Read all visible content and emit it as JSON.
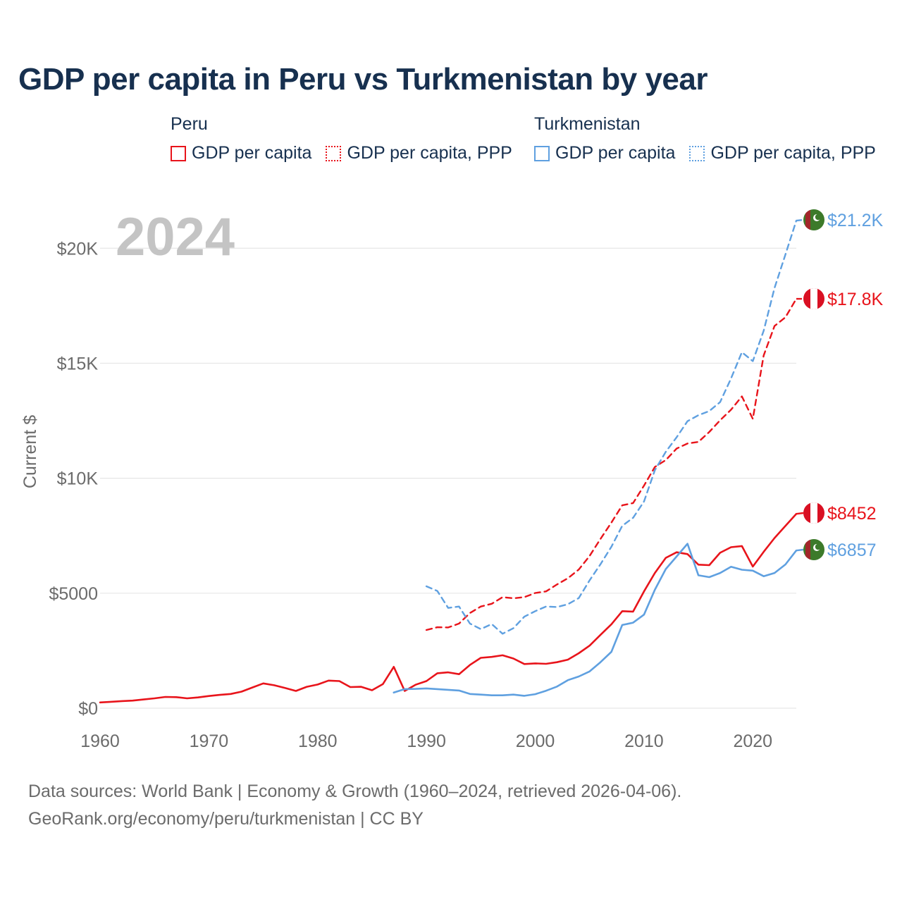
{
  "title": "GDP per capita in Peru vs Turkmenistan by year",
  "legend": {
    "peru": {
      "country": "Peru",
      "items": [
        {
          "label": "GDP per capita",
          "style": "solid"
        },
        {
          "label": "GDP per capita, PPP",
          "style": "dotted"
        }
      ]
    },
    "turkmenistan": {
      "country": "Turkmenistan",
      "items": [
        {
          "label": "GDP per capita",
          "style": "solid"
        },
        {
          "label": "GDP per capita, PPP",
          "style": "dotted"
        }
      ]
    }
  },
  "footer": {
    "line1": "Data sources: World Bank | Economy & Growth (1960–2024, retrieved 2026-04-06).",
    "line2": "GeoRank.org/economy/peru/turkmenistan | CC BY"
  },
  "colors": {
    "peru": "#e8141b",
    "turkmenistan": "#5fa0e0",
    "title": "#17304f",
    "axis_text": "#6b6b6b",
    "grid": "#e6e6e6",
    "year_watermark": "#c4c4c4"
  },
  "chart_data": {
    "type": "line",
    "year_label": "2024",
    "ylabel": "Current $",
    "xlim": [
      1960,
      2024
    ],
    "ylim": [
      0,
      22000
    ],
    "x_ticks": [
      1960,
      1970,
      1980,
      1990,
      2000,
      2010,
      2020
    ],
    "x_tick_labels": [
      "1960",
      "1970",
      "1980",
      "1990",
      "2000",
      "2010",
      "2020"
    ],
    "y_ticks": [
      0,
      5000,
      10000,
      15000,
      20000
    ],
    "y_tick_labels": [
      "$0",
      "$5000",
      "$10K",
      "$15K",
      "$20K"
    ],
    "series": [
      {
        "name": "Peru GDP per capita",
        "country": "peru",
        "dashed": false,
        "end_label": "$8452",
        "x": [
          1960,
          1961,
          1962,
          1963,
          1964,
          1965,
          1966,
          1967,
          1968,
          1969,
          1970,
          1971,
          1972,
          1973,
          1974,
          1975,
          1976,
          1977,
          1978,
          1979,
          1980,
          1981,
          1982,
          1983,
          1984,
          1985,
          1986,
          1987,
          1988,
          1989,
          1990,
          1991,
          1992,
          1993,
          1994,
          1995,
          1996,
          1997,
          1998,
          1999,
          2000,
          2001,
          2002,
          2003,
          2004,
          2005,
          2006,
          2007,
          2008,
          2009,
          2010,
          2011,
          2012,
          2013,
          2014,
          2015,
          2016,
          2017,
          2018,
          2019,
          2020,
          2021,
          2022,
          2023,
          2024
        ],
        "values": [
          250,
          280,
          310,
          330,
          380,
          430,
          490,
          480,
          430,
          470,
          530,
          580,
          620,
          720,
          900,
          1080,
          1000,
          880,
          750,
          930,
          1030,
          1200,
          1180,
          920,
          930,
          780,
          1050,
          1800,
          750,
          1020,
          1180,
          1520,
          1560,
          1480,
          1880,
          2190,
          2230,
          2300,
          2160,
          1920,
          1950,
          1930,
          2000,
          2110,
          2390,
          2720,
          3190,
          3650,
          4220,
          4200,
          5080,
          5880,
          6540,
          6780,
          6700,
          6240,
          6220,
          6760,
          7000,
          7050,
          6160,
          6800,
          7400,
          7930,
          8452
        ]
      },
      {
        "name": "Peru GDP per capita, PPP",
        "country": "peru",
        "dashed": true,
        "end_label": "$17.8K",
        "x": [
          1990,
          1991,
          1992,
          1993,
          1994,
          1995,
          1996,
          1997,
          1998,
          1999,
          2000,
          2001,
          2002,
          2003,
          2004,
          2005,
          2006,
          2007,
          2008,
          2009,
          2010,
          2011,
          2012,
          2013,
          2014,
          2015,
          2016,
          2017,
          2018,
          2019,
          2020,
          2021,
          2022,
          2023,
          2024
        ],
        "values": [
          3400,
          3520,
          3510,
          3680,
          4140,
          4420,
          4540,
          4830,
          4780,
          4830,
          5010,
          5080,
          5380,
          5650,
          6030,
          6620,
          7360,
          8070,
          8820,
          8920,
          9680,
          10490,
          10790,
          11290,
          11510,
          11580,
          12010,
          12520,
          12980,
          13560,
          12580,
          15340,
          16620,
          17000,
          17800
        ]
      },
      {
        "name": "Turkmenistan GDP per capita",
        "country": "turkmenistan",
        "dashed": false,
        "end_label": "$6857",
        "x": [
          1987,
          1988,
          1989,
          1990,
          1991,
          1992,
          1993,
          1994,
          1995,
          1996,
          1997,
          1998,
          1999,
          2000,
          2001,
          2002,
          2003,
          2004,
          2005,
          2006,
          2007,
          2008,
          2009,
          2010,
          2011,
          2012,
          2013,
          2014,
          2015,
          2016,
          2017,
          2018,
          2019,
          2020,
          2021,
          2022,
          2023,
          2024
        ],
        "values": [
          680,
          830,
          840,
          860,
          830,
          800,
          770,
          620,
          590,
          560,
          560,
          590,
          540,
          610,
          760,
          940,
          1220,
          1380,
          1600,
          2000,
          2450,
          3620,
          3720,
          4070,
          5150,
          6050,
          6600,
          7150,
          5780,
          5700,
          5880,
          6150,
          6020,
          5980,
          5740,
          5880,
          6250,
          6857
        ]
      },
      {
        "name": "Turkmenistan GDP per capita, PPP",
        "country": "turkmenistan",
        "dashed": true,
        "end_label": "$21.2K",
        "x": [
          1990,
          1991,
          1992,
          1993,
          1994,
          1995,
          1996,
          1997,
          1998,
          1999,
          2000,
          2001,
          2002,
          2003,
          2004,
          2005,
          2006,
          2007,
          2008,
          2009,
          2010,
          2011,
          2012,
          2013,
          2014,
          2015,
          2016,
          2017,
          2018,
          2019,
          2020,
          2021,
          2022,
          2023,
          2024
        ],
        "values": [
          5300,
          5100,
          4360,
          4420,
          3680,
          3440,
          3660,
          3240,
          3480,
          3980,
          4220,
          4420,
          4400,
          4520,
          4790,
          5560,
          6260,
          7020,
          7930,
          8280,
          8990,
          10350,
          11150,
          11780,
          12480,
          12740,
          12920,
          13310,
          14340,
          15480,
          15090,
          16410,
          18270,
          19730,
          21200
        ]
      }
    ]
  }
}
